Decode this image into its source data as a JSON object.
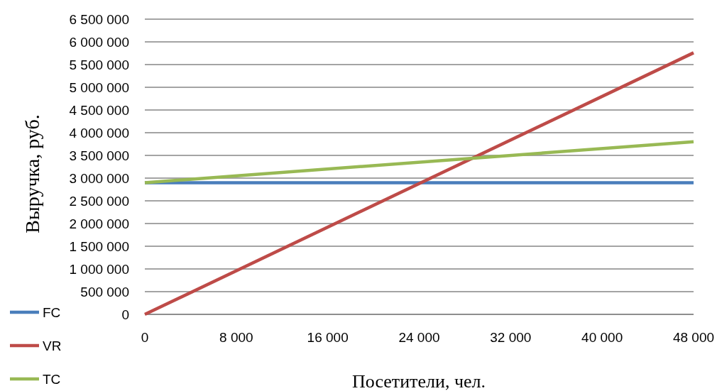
{
  "chart_data": {
    "type": "line",
    "xlabel": "Посетители, чел.",
    "ylabel": "Выручка, руб.",
    "x": [
      0,
      48000
    ],
    "series": [
      {
        "name": "FC",
        "color": "#4a7ebb",
        "values": [
          2900000,
          2900000
        ]
      },
      {
        "name": "VR",
        "color": "#be4b48",
        "values": [
          0,
          5760000
        ]
      },
      {
        "name": "TC",
        "color": "#98b954",
        "values": [
          2900000,
          3800000
        ]
      }
    ],
    "xlim": [
      0,
      48000
    ],
    "xticks": [
      0,
      {
        "value": 8000,
        "label": "8 000"
      },
      {
        "value": 16000,
        "label": "16 000"
      },
      {
        "value": 24000,
        "label": "24 000"
      },
      {
        "value": 32000,
        "label": "32 000"
      },
      {
        "value": 40000,
        "label": "40 000"
      },
      {
        "value": 48000,
        "label": "48 000"
      }
    ],
    "ylim": [
      0,
      6500000
    ],
    "yticks": [
      0,
      {
        "value": 500000,
        "label": "500 000"
      },
      {
        "value": 1000000,
        "label": "1 000 000"
      },
      {
        "value": 1500000,
        "label": "1 500 000"
      },
      {
        "value": 2000000,
        "label": "2 000 000"
      },
      {
        "value": 2500000,
        "label": "2 500 000"
      },
      {
        "value": 3000000,
        "label": "3 000 000"
      },
      {
        "value": 3500000,
        "label": "3 500 000"
      },
      {
        "value": 4000000,
        "label": "4 000 000"
      },
      {
        "value": 4500000,
        "label": "4 500 000"
      },
      {
        "value": 5000000,
        "label": "5 000 000"
      },
      {
        "value": 5500000,
        "label": "5 500 000"
      },
      {
        "value": 6000000,
        "label": "6 000 000"
      },
      {
        "value": 6500000,
        "label": "6 500 000"
      }
    ],
    "grid": "y",
    "legend": "bottom left",
    "marker": "none",
    "line_style": "solid"
  }
}
